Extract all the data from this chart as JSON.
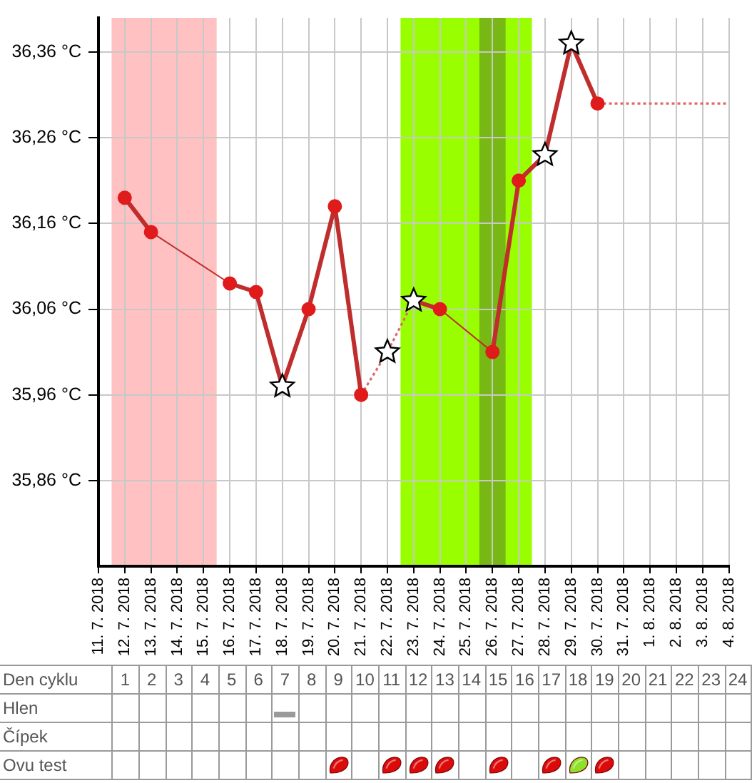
{
  "chart_data": {
    "type": "line",
    "categories": [
      "11. 7. 2018",
      "12. 7. 2018",
      "13. 7. 2018",
      "14. 7. 2018",
      "15. 7. 2018",
      "16. 7. 2018",
      "17. 7. 2018",
      "18. 7. 2018",
      "19. 7. 2018",
      "20. 7. 2018",
      "21. 7. 2018",
      "22. 7. 2018",
      "23. 7. 2018",
      "24. 7. 2018",
      "25. 7. 2018",
      "26. 7. 2018",
      "27. 7. 2018",
      "28. 7. 2018",
      "29. 7. 2018",
      "30. 7. 2018",
      "31. 7. 2018",
      "1. 8. 2018",
      "2. 8. 2018",
      "3. 8. 2018",
      "4. 8. 2018"
    ],
    "series": [
      {
        "color": "#bf2d2d",
        "marker": "none",
        "line_style": "solid",
        "values": [
          null,
          36.19,
          36.15,
          null,
          null,
          36.09,
          36.08,
          35.97,
          36.06,
          36.18,
          35.96,
          null,
          36.07,
          36.06,
          null,
          36.01,
          36.21,
          36.24,
          36.37,
          36.3,
          null,
          null,
          null,
          null,
          null
        ]
      },
      {
        "color": "#e06a6a",
        "marker": "none",
        "line_style": "dotted",
        "values": [
          null,
          null,
          null,
          null,
          null,
          null,
          null,
          null,
          null,
          null,
          35.96,
          36.01,
          36.07,
          null,
          null,
          null,
          null,
          null,
          null,
          36.3,
          36.3,
          36.3,
          36.3,
          36.3,
          36.3
        ]
      },
      {
        "type": "scatter",
        "color": "#e01b1b",
        "marker": "circle",
        "values": [
          null,
          36.19,
          36.15,
          null,
          null,
          36.09,
          36.08,
          null,
          36.06,
          36.18,
          35.96,
          null,
          null,
          36.06,
          null,
          36.01,
          36.21,
          null,
          null,
          36.3,
          null,
          null,
          null,
          null,
          null
        ]
      },
      {
        "type": "scatter",
        "color": "#ffffff",
        "marker": "star",
        "values": [
          null,
          null,
          null,
          null,
          null,
          null,
          null,
          35.97,
          null,
          null,
          null,
          36.01,
          36.07,
          null,
          null,
          null,
          null,
          36.24,
          36.37,
          null,
          null,
          null,
          null,
          null,
          null
        ]
      }
    ],
    "ylim": [
      35.76,
      36.4
    ],
    "yticks": [
      {
        "value": 35.86,
        "label": "35,86 °C"
      },
      {
        "value": 35.96,
        "label": "35,96 °C"
      },
      {
        "value": 36.06,
        "label": "36,06 °C"
      },
      {
        "value": 36.16,
        "label": "36,16 °C"
      },
      {
        "value": 36.26,
        "label": "36,26 °C"
      },
      {
        "value": 36.36,
        "label": "36,36 °C"
      }
    ],
    "x2lim": [
      -3.7,
      24
    ],
    "x2ticks": [
      1,
      2,
      3,
      4,
      5,
      6,
      7,
      8,
      9,
      10,
      11,
      12,
      13,
      14,
      15,
      16,
      17,
      18,
      19,
      20,
      21,
      22,
      23,
      24
    ],
    "annotations": [
      "Den cyklu",
      "Hlen",
      "Čípek",
      "Ovu test"
    ],
    "grid": true,
    "legend": false,
    "bands": [
      {
        "axis": "x",
        "from": "12. 7. 2018",
        "to": "15. 7. 2018",
        "color": "#ffc1c1"
      },
      {
        "axis": "x",
        "from": "23. 7. 2018",
        "to": "27. 7. 2018",
        "color": "#99ff00"
      },
      {
        "axis": "x",
        "from": "26. 7. 2018",
        "to": "26. 7. 2018",
        "color": "#77b814"
      }
    ]
  }
}
